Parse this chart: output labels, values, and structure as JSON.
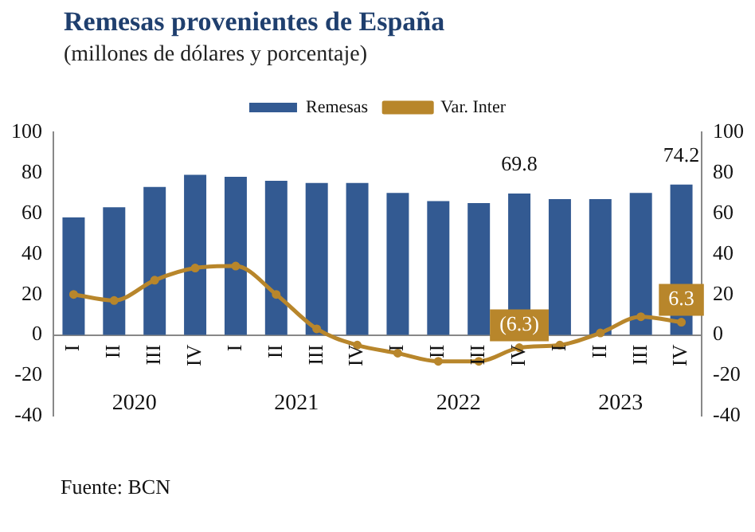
{
  "chart_data": {
    "type": "bar",
    "title": "Remesas provenientes de España",
    "subtitle": "(millones de dólares y porcentaje)",
    "categories": [
      "I",
      "II",
      "III",
      "IV",
      "I",
      "II",
      "III",
      "IV",
      "I",
      "II",
      "III",
      "IV",
      "I",
      "II",
      "III",
      "IV"
    ],
    "series": [
      {
        "name": "Remesas",
        "color": "#335a92",
        "values": [
          58,
          63,
          73,
          79,
          78,
          76,
          75,
          75,
          70,
          66,
          65,
          69.8,
          67,
          67,
          70,
          74.2
        ],
        "value_labels": [
          null,
          null,
          null,
          null,
          null,
          null,
          null,
          null,
          null,
          null,
          null,
          "69.8",
          null,
          null,
          null,
          "74.2"
        ]
      },
      {
        "name": "Var. Inter",
        "type": "line",
        "color": "#b8862b",
        "values": [
          20,
          17,
          27,
          33,
          34,
          20,
          3,
          -5,
          -9,
          -13,
          -13,
          -6.3,
          -5,
          1,
          9,
          6.3
        ],
        "value_labels": [
          null,
          null,
          null,
          null,
          null,
          null,
          null,
          null,
          null,
          null,
          null,
          "(6.3)",
          null,
          null,
          null,
          "6.3"
        ]
      }
    ],
    "ylim": [
      -40,
      100
    ],
    "yticks": [
      -40,
      -20,
      0,
      20,
      40,
      60,
      80,
      100
    ],
    "y2lim": [
      -40,
      100
    ],
    "y2ticks": [
      -40,
      -20,
      0,
      20,
      40,
      60,
      80,
      100
    ],
    "legend": "top",
    "grid": false,
    "marker": "circle",
    "line_style": "solid",
    "annotations": [
      "2020",
      "2021",
      "2022",
      "2023",
      "Fuente: BCN"
    ]
  }
}
